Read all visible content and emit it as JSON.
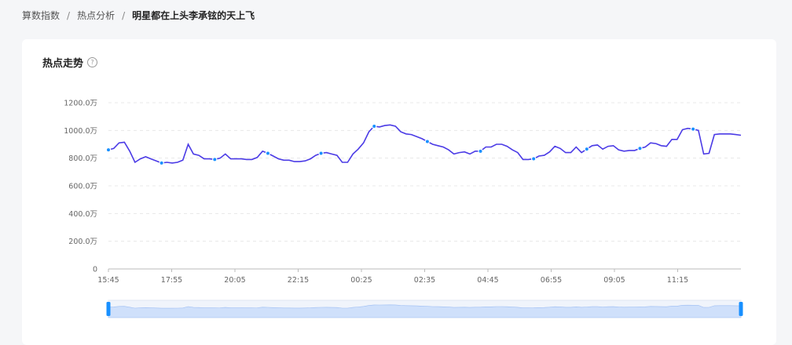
{
  "breadcrumb": {
    "items": [
      "算数指数",
      "热点分析"
    ],
    "separator": "/",
    "current": "明星都在上头李承铉的天上飞"
  },
  "card": {
    "title": "热点走势",
    "help_icon": "question-circle-icon"
  },
  "colors": {
    "line": "#4b3be6",
    "marker": "#1890ff",
    "grid": "#e8e8e8",
    "axis_text": "#666666",
    "slider_fill": "#cfe0fb",
    "slider_handle": "#1890ff"
  },
  "chart_data": {
    "type": "line",
    "title": "",
    "xlabel": "",
    "ylabel": "",
    "ylim": [
      0,
      12000000
    ],
    "yticks": [
      0,
      2000000,
      4000000,
      6000000,
      8000000,
      10000000,
      12000000
    ],
    "ytick_labels": [
      "0",
      "200.0万",
      "400.0万",
      "600.0万",
      "800.0万",
      "1000.0万",
      "1200.0万"
    ],
    "xtick_labels": [
      "15:45",
      "17:55",
      "20:05",
      "22:15",
      "00:25",
      "02:35",
      "04:45",
      "06:55",
      "09:05",
      "11:15"
    ],
    "x_range": [
      0,
      100
    ],
    "xticks_at": [
      0,
      10,
      20,
      30,
      40,
      50,
      60,
      70,
      80,
      90
    ],
    "grid": true,
    "marker_every": 10,
    "series": [
      {
        "values": [
          8600000,
          8700000,
          9100000,
          9150000,
          8500000,
          7700000,
          7950000,
          8100000,
          7950000,
          7800000,
          7650000,
          7700000,
          7650000,
          7700000,
          7850000,
          9000000,
          8300000,
          8200000,
          7950000,
          7950000,
          7900000,
          8000000,
          8300000,
          7950000,
          7950000,
          7950000,
          7900000,
          7900000,
          8050000,
          8500000,
          8350000,
          8150000,
          7950000,
          7850000,
          7850000,
          7750000,
          7750000,
          7800000,
          7950000,
          8200000,
          8350000,
          8400000,
          8300000,
          8200000,
          7700000,
          7700000,
          8300000,
          8650000,
          9100000,
          9900000,
          10300000,
          10250000,
          10350000,
          10400000,
          10300000,
          9900000,
          9750000,
          9700000,
          9550000,
          9400000,
          9200000,
          9000000,
          8900000,
          8800000,
          8600000,
          8300000,
          8400000,
          8450000,
          8300000,
          8500000,
          8500000,
          8800000,
          8800000,
          9000000,
          9000000,
          8850000,
          8600000,
          8400000,
          7900000,
          7900000,
          7950000,
          8150000,
          8200000,
          8450000,
          8850000,
          8700000,
          8400000,
          8400000,
          8800000,
          8400000,
          8650000,
          8900000,
          8950000,
          8650000,
          8850000,
          8900000,
          8600000,
          8500000,
          8550000,
          8550000,
          8700000,
          8800000,
          9100000,
          9050000,
          8900000,
          8850000,
          9350000,
          9350000,
          10050000,
          10150000,
          10100000,
          10000000,
          8300000,
          8350000,
          9700000,
          9750000,
          9750000,
          9750000,
          9700000,
          9650000
        ]
      }
    ],
    "slider": {
      "start": 0,
      "end": 100
    }
  }
}
